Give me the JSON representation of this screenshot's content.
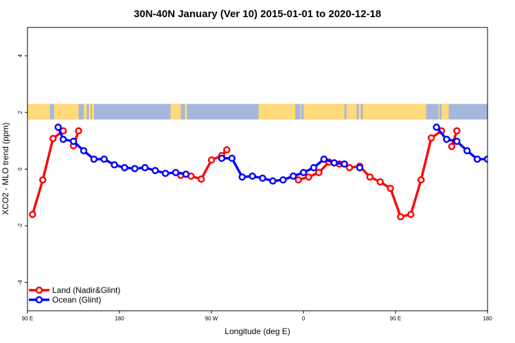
{
  "chart_data": {
    "type": "line",
    "title": "30N-40N January (Ver 10)   2015-01-01 to 2020-12-18",
    "xlabel": "Longitude (deg E)",
    "ylabel": "XCO2 - MLO trend (ppm)",
    "xlim": [
      90,
      540
    ],
    "ylim": [
      -5,
      5
    ],
    "x_ticks": [
      {
        "value": 90,
        "label": "90 E"
      },
      {
        "value": 180,
        "label": "180"
      },
      {
        "value": 270,
        "label": "90 W"
      },
      {
        "value": 360,
        "label": "0"
      },
      {
        "value": 450,
        "label": "90 E"
      },
      {
        "value": 540,
        "label": "180"
      }
    ],
    "y_ticks": [
      {
        "value": -4,
        "label": "-4"
      },
      {
        "value": -2,
        "label": "-2"
      },
      {
        "value": 0,
        "label": "0"
      },
      {
        "value": 2,
        "label": "2"
      },
      {
        "value": 4,
        "label": "4"
      }
    ],
    "grid": false,
    "legend_position": "bottom-left",
    "series": [
      {
        "name": "Land (Nadir&Glint)",
        "color": "#ff0000",
        "segments": [
          [
            [
              95,
              -1.6
            ],
            [
              105,
              -0.38
            ],
            [
              115,
              1.08
            ],
            [
              125,
              1.35
            ]
          ],
          [
            [
              135,
              0.82
            ],
            [
              140,
              1.35
            ]
          ],
          [
            [
              240,
              -0.22
            ],
            [
              250,
              -0.25
            ],
            [
              260,
              -0.35
            ],
            [
              270,
              0.32
            ],
            [
              280,
              0.48
            ],
            [
              285,
              0.68
            ]
          ],
          [
            [
              355,
              -0.38
            ],
            [
              365,
              -0.28
            ],
            [
              375,
              -0.12
            ],
            [
              385,
              0.25
            ],
            [
              395,
              0.18
            ],
            [
              405,
              0.05
            ],
            [
              415,
              0.1
            ],
            [
              425,
              -0.28
            ],
            [
              435,
              -0.45
            ],
            [
              445,
              -0.68
            ],
            [
              455,
              -1.68
            ],
            [
              465,
              -1.6
            ],
            [
              475,
              -0.38
            ],
            [
              485,
              1.1
            ],
            [
              495,
              1.35
            ]
          ],
          [
            [
              505,
              0.8
            ],
            [
              510,
              1.35
            ]
          ]
        ]
      },
      {
        "name": "Ocean (Glint)",
        "color": "#0000ff",
        "segments": [
          [
            [
              120,
              1.48
            ],
            [
              125,
              1.05
            ],
            [
              135,
              0.98
            ],
            [
              145,
              0.65
            ],
            [
              155,
              0.35
            ],
            [
              165,
              0.35
            ],
            [
              175,
              0.15
            ],
            [
              185,
              0.05
            ],
            [
              195,
              0.02
            ],
            [
              205,
              0.05
            ],
            [
              215,
              -0.05
            ],
            [
              225,
              -0.15
            ],
            [
              235,
              -0.12
            ],
            [
              245,
              -0.18
            ]
          ],
          [
            [
              280,
              0.38
            ],
            [
              290,
              0.38
            ],
            [
              300,
              -0.28
            ],
            [
              310,
              -0.25
            ],
            [
              320,
              -0.32
            ],
            [
              330,
              -0.42
            ],
            [
              340,
              -0.38
            ],
            [
              350,
              -0.25
            ],
            [
              360,
              -0.12
            ],
            [
              370,
              0.05
            ],
            [
              380,
              0.35
            ],
            [
              390,
              0.22
            ],
            [
              400,
              0.18
            ]
          ],
          [
            [
              415,
              0.05
            ]
          ],
          [
            [
              490,
              1.48
            ],
            [
              500,
              1.05
            ],
            [
              510,
              0.98
            ],
            [
              520,
              0.65
            ],
            [
              530,
              0.35
            ],
            [
              540,
              0.35
            ],
            [
              550,
              0.15
            ]
          ]
        ]
      }
    ],
    "map_strip": {
      "y_range": [
        1.75,
        2.3
      ],
      "land_color": "#ffd97a",
      "ocean_color": "#a3b8dc"
    }
  }
}
